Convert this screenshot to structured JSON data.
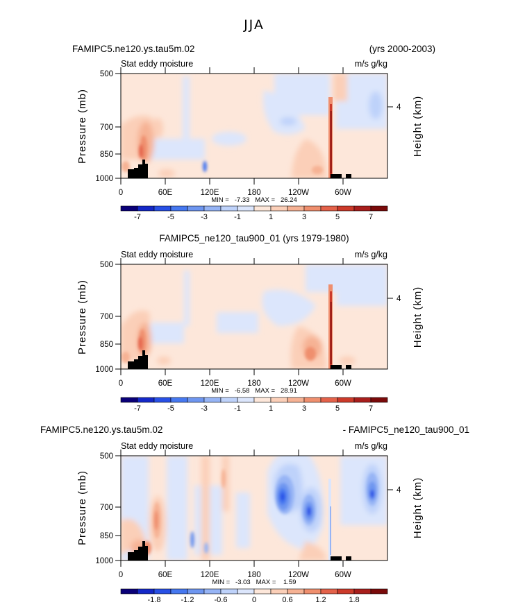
{
  "figure_title": "JJA",
  "chart_data": [
    {
      "type": "heatmap",
      "title_left": "FAMIPC5.ne120.ys.tau5m.02",
      "title_right": "(yrs 2000-2003)",
      "subtitle_left": "Stat eddy moisture",
      "subtitle_right": "m/s g/kg",
      "ylabel": "Pressure (mb)",
      "right_label": "Height (km)",
      "y_ticks": [
        "500",
        "700",
        "850",
        "1000"
      ],
      "right_ticks": [
        "4"
      ],
      "x_ticks": [
        "0",
        "60E",
        "120E",
        "180",
        "120W",
        "60W"
      ],
      "stats": "MIN =   -7.33   MAX =   26.24",
      "colorbar_labels": [
        "-7",
        "-5",
        "-3",
        "-1",
        "1",
        "3",
        "5",
        "7"
      ]
    },
    {
      "type": "heatmap",
      "title_center": "FAMIPC5_ne120_tau900_01 (yrs 1979-1980)",
      "subtitle_left": "Stat eddy moisture",
      "subtitle_right": "m/s g/kg",
      "ylabel": "Pressure (mb)",
      "right_label": "Height (km)",
      "y_ticks": [
        "500",
        "700",
        "850",
        "1000"
      ],
      "right_ticks": [
        "4"
      ],
      "x_ticks": [
        "0",
        "60E",
        "120E",
        "180",
        "120W",
        "60W"
      ],
      "stats": "MIN =   -6.58   MAX =   28.91",
      "colorbar_labels": [
        "-7",
        "-5",
        "-3",
        "-1",
        "1",
        "3",
        "5",
        "7"
      ]
    },
    {
      "type": "heatmap",
      "title_left": "FAMIPC5.ne120.ys.tau5m.02",
      "title_right": "- FAMIPC5_ne120_tau900_01",
      "subtitle_left": "Stat eddy moisture",
      "subtitle_right": "m/s g/kg",
      "ylabel": "Pressure (mb)",
      "right_label": "Height (km)",
      "y_ticks": [
        "500",
        "700",
        "850",
        "1000"
      ],
      "right_ticks": [
        "4"
      ],
      "x_ticks": [
        "0",
        "60E",
        "120E",
        "180",
        "120W",
        "60W"
      ],
      "stats": "MIN =   -3.03   MAX =    1.59",
      "colorbar_labels": [
        "-1.8",
        "-1.2",
        "-0.6",
        "0",
        "0.6",
        "1.2",
        "1.8"
      ]
    }
  ],
  "colors": {
    "ramp": [
      "#0a0078",
      "#1428c8",
      "#2850e6",
      "#4678f0",
      "#6e96f0",
      "#96b4f5",
      "#bed2fa",
      "#dce6fc",
      "#fde7da",
      "#fbcfb8",
      "#f6b294",
      "#ef8f6e",
      "#e4624a",
      "#cc3a2a",
      "#a81e1c",
      "#7a0a0a"
    ],
    "terrain": "#000000"
  }
}
